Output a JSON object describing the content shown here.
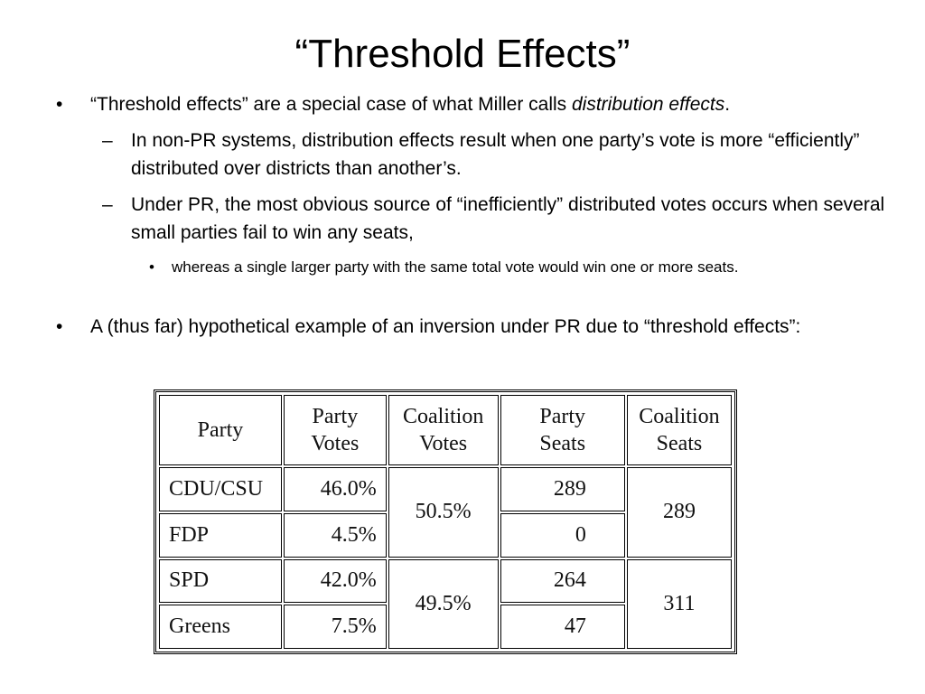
{
  "title": "“Threshold Effects”",
  "bullets": {
    "b1_text": "“Threshold effects” are a special case of what Miller calls ",
    "b1_emph": "distribution effects",
    "b1_end": ".",
    "b1_sub1": "In non-PR systems, distribution effects result when one party’s vote is more “efficiently” distributed over districts than another’s.",
    "b1_sub2": "Under PR, the most obvious source of “inefficiently” distributed votes occurs when several small parties fail to win any seats,",
    "b1_sub2_sub1": "whereas a single larger party with the same total vote would win one or more seats.",
    "b2_text": "A (thus far) hypothetical example of an inversion under PR due to “threshold effects”:"
  },
  "markers": {
    "bullet": "•",
    "dash": "–"
  },
  "table": {
    "headers": {
      "party": [
        "Party"
      ],
      "party_votes": [
        "Party",
        "Votes"
      ],
      "coalition_votes": [
        "Coalition",
        "Votes"
      ],
      "party_seats": [
        "Party",
        "Seats"
      ],
      "coalition_seats": [
        "Coalition",
        "Seats"
      ]
    },
    "rows": [
      {
        "party": "CDU/CSU",
        "party_votes": "46.0%",
        "party_seats": "289"
      },
      {
        "party": "FDP",
        "party_votes": "4.5%",
        "party_seats": "0"
      },
      {
        "party": "SPD",
        "party_votes": "42.0%",
        "party_seats": "264"
      },
      {
        "party": "Greens",
        "party_votes": "7.5%",
        "party_seats": "47"
      }
    ],
    "coalitions": [
      {
        "votes": "50.5%",
        "seats": "289"
      },
      {
        "votes": "49.5%",
        "seats": "311"
      }
    ]
  }
}
